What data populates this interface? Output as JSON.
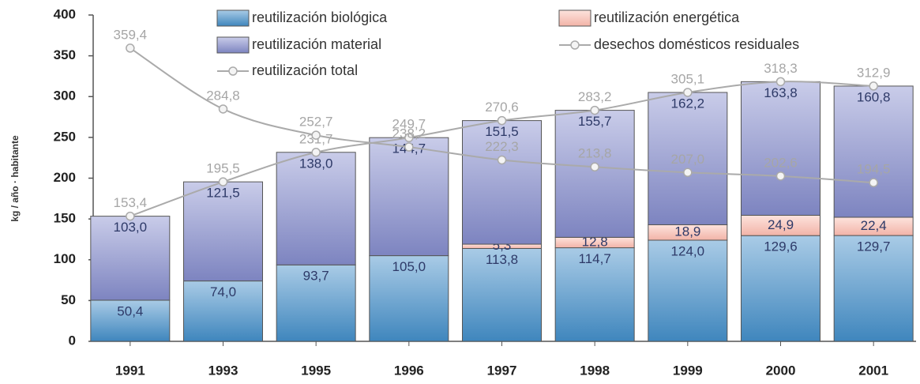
{
  "chart_data": {
    "type": "bar",
    "y_label": "kg / año · habitante",
    "categories": [
      "1991",
      "1993",
      "1995",
      "1996",
      "1997",
      "1998",
      "1999",
      "2000",
      "2001"
    ],
    "ylim": [
      0,
      400
    ],
    "yticks": [
      0,
      50,
      100,
      150,
      200,
      250,
      300,
      350,
      400
    ],
    "series": [
      {
        "name": "reutilización biológica",
        "type": "bar",
        "color": "#5d9fcf",
        "values": [
          50.4,
          74.0,
          93.7,
          105.0,
          113.8,
          114.7,
          124.0,
          129.6,
          129.7
        ],
        "value_labels": [
          "50,4",
          "74,0",
          "93,7",
          "105,0",
          "113,8",
          "114,7",
          "124,0",
          "129,6",
          "129,7"
        ]
      },
      {
        "name": "reutilización energética",
        "type": "bar",
        "color": "#f8cdc4",
        "values": [
          null,
          null,
          null,
          null,
          5.3,
          12.8,
          18.9,
          24.9,
          22.4
        ],
        "value_labels": [
          null,
          null,
          null,
          null,
          "5,3",
          "12,8",
          "18,9",
          "24,9",
          "22,4"
        ]
      },
      {
        "name": "reutilización material",
        "type": "bar",
        "color": "#9da3d3",
        "values": [
          103.0,
          121.5,
          138.0,
          144.7,
          151.5,
          155.7,
          162.2,
          163.8,
          160.8
        ],
        "value_labels": [
          "103,0",
          "121,5",
          "138,0",
          "144,7",
          "151,5",
          "155,7",
          "162,2",
          "163,8",
          "160,8"
        ]
      },
      {
        "name": "reutilización total",
        "type": "line",
        "color": "#aaaaaa",
        "values": [
          153.4,
          195.5,
          231.7,
          249.7,
          270.6,
          283.2,
          305.1,
          318.3,
          312.9
        ],
        "value_labels": [
          "153,4",
          "195,5",
          "231,7",
          "249,7",
          "270,6",
          "283,2",
          "305,1",
          "318,3",
          "312,9"
        ]
      },
      {
        "name": "desechos domésticos residuales",
        "type": "line",
        "color": "#aaaaaa",
        "values": [
          359.4,
          284.8,
          252.7,
          238.2,
          222.3,
          213.8,
          207.0,
          202.6,
          194.5
        ],
        "value_labels": [
          "359,4",
          "284,8",
          "252,7",
          "238,2",
          "222,3",
          "213,8",
          "207,0",
          "202,6",
          "194,5"
        ]
      }
    ]
  }
}
